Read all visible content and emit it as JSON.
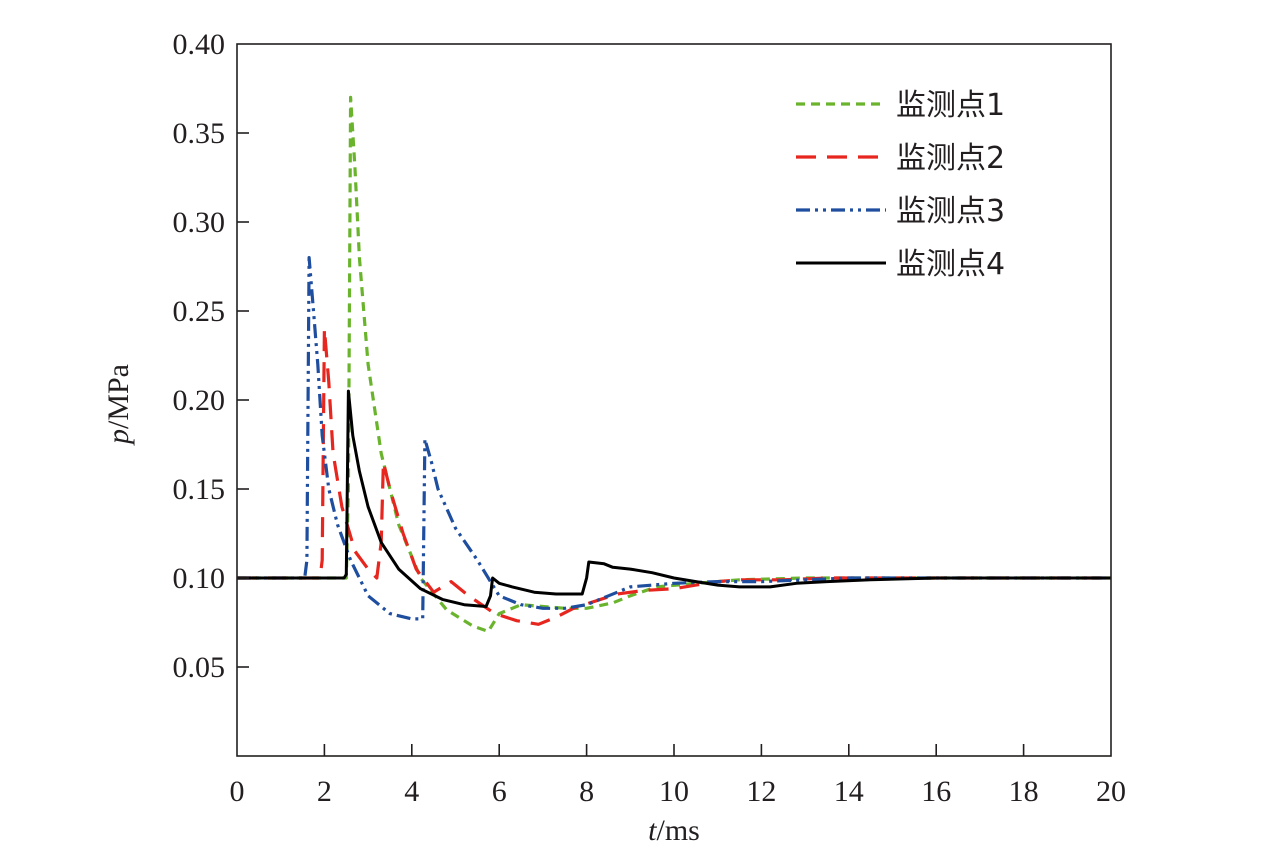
{
  "chart_data": {
    "type": "line",
    "title": "",
    "xlabel": {
      "var": "t",
      "unit": "/ms"
    },
    "ylabel": {
      "var": "p",
      "unit": "/MPa"
    },
    "xlim": [
      0,
      20
    ],
    "ylim": [
      0,
      0.4
    ],
    "x_ticks": [
      0,
      2,
      4,
      6,
      8,
      10,
      12,
      14,
      16,
      18,
      20
    ],
    "x_tick_labels": [
      "0",
      "2",
      "4",
      "6",
      "8",
      "10",
      "12",
      "14",
      "16",
      "18",
      "20"
    ],
    "y_ticks": [
      0.05,
      0.1,
      0.15,
      0.2,
      0.25,
      0.3,
      0.35,
      0.4
    ],
    "y_tick_labels": [
      "0.05",
      "0.10",
      "0.15",
      "0.20",
      "0.25",
      "0.30",
      "0.35",
      "0.40"
    ],
    "grid": false,
    "legend_position": "top-right",
    "series": [
      {
        "name": "监测点1",
        "color": "#6ab42d",
        "style": "short-dash",
        "points": [
          [
            0,
            0.1
          ],
          [
            2.5,
            0.1
          ],
          [
            2.55,
            0.15
          ],
          [
            2.6,
            0.37
          ],
          [
            2.7,
            0.33
          ],
          [
            2.8,
            0.28
          ],
          [
            3.0,
            0.22
          ],
          [
            3.3,
            0.17
          ],
          [
            3.7,
            0.13
          ],
          [
            4.2,
            0.1
          ],
          [
            4.8,
            0.082
          ],
          [
            5.4,
            0.073
          ],
          [
            5.75,
            0.07
          ],
          [
            6.0,
            0.08
          ],
          [
            6.5,
            0.085
          ],
          [
            7.0,
            0.084
          ],
          [
            7.5,
            0.083
          ],
          [
            8.0,
            0.083
          ],
          [
            8.6,
            0.086
          ],
          [
            9.0,
            0.09
          ],
          [
            9.6,
            0.095
          ],
          [
            10.5,
            0.097
          ],
          [
            11.5,
            0.099
          ],
          [
            13,
            0.1
          ],
          [
            15,
            0.1
          ],
          [
            17,
            0.1
          ],
          [
            20,
            0.1
          ]
        ]
      },
      {
        "name": "监测点2",
        "color": "#e6261f",
        "style": "long-dash",
        "points": [
          [
            0,
            0.1
          ],
          [
            1.9,
            0.1
          ],
          [
            1.95,
            0.11
          ],
          [
            2.0,
            0.24
          ],
          [
            2.1,
            0.21
          ],
          [
            2.2,
            0.17
          ],
          [
            2.4,
            0.14
          ],
          [
            2.7,
            0.115
          ],
          [
            3.0,
            0.105
          ],
          [
            3.2,
            0.1
          ],
          [
            3.3,
            0.12
          ],
          [
            3.35,
            0.165
          ],
          [
            3.5,
            0.15
          ],
          [
            3.8,
            0.125
          ],
          [
            4.1,
            0.105
          ],
          [
            4.5,
            0.092
          ],
          [
            4.9,
            0.098
          ],
          [
            5.3,
            0.09
          ],
          [
            5.9,
            0.08
          ],
          [
            6.4,
            0.076
          ],
          [
            6.9,
            0.074
          ],
          [
            7.3,
            0.078
          ],
          [
            7.7,
            0.083
          ],
          [
            8.2,
            0.087
          ],
          [
            8.7,
            0.091
          ],
          [
            9.3,
            0.093
          ],
          [
            10,
            0.094
          ],
          [
            10.5,
            0.096
          ],
          [
            11,
            0.098
          ],
          [
            11.5,
            0.099
          ],
          [
            12.5,
            0.099
          ],
          [
            13.5,
            0.1
          ],
          [
            16,
            0.1
          ],
          [
            18,
            0.1
          ],
          [
            20,
            0.1
          ]
        ]
      },
      {
        "name": "监测点3",
        "color": "#1f4e9f",
        "style": "dash-dot-dot",
        "points": [
          [
            0,
            0.1
          ],
          [
            1.55,
            0.1
          ],
          [
            1.6,
            0.11
          ],
          [
            1.65,
            0.28
          ],
          [
            1.75,
            0.25
          ],
          [
            1.85,
            0.22
          ],
          [
            1.95,
            0.18
          ],
          [
            2.1,
            0.15
          ],
          [
            2.3,
            0.13
          ],
          [
            2.6,
            0.11
          ],
          [
            3.0,
            0.09
          ],
          [
            3.5,
            0.08
          ],
          [
            4.0,
            0.077
          ],
          [
            4.25,
            0.077
          ],
          [
            4.3,
            0.178
          ],
          [
            4.45,
            0.165
          ],
          [
            4.6,
            0.15
          ],
          [
            5.0,
            0.128
          ],
          [
            5.5,
            0.11
          ],
          [
            6.0,
            0.09
          ],
          [
            6.5,
            0.085
          ],
          [
            7.0,
            0.083
          ],
          [
            7.5,
            0.083
          ],
          [
            8.0,
            0.085
          ],
          [
            8.5,
            0.09
          ],
          [
            9.0,
            0.095
          ],
          [
            9.5,
            0.096
          ],
          [
            10,
            0.097
          ],
          [
            11,
            0.098
          ],
          [
            12,
            0.098
          ],
          [
            13,
            0.099
          ],
          [
            14,
            0.1
          ],
          [
            16,
            0.1
          ],
          [
            18,
            0.1
          ],
          [
            20,
            0.1
          ]
        ]
      },
      {
        "name": "监测点4",
        "color": "#000000",
        "style": "solid",
        "points": [
          [
            0,
            0.1
          ],
          [
            2.45,
            0.1
          ],
          [
            2.5,
            0.102
          ],
          [
            2.55,
            0.205
          ],
          [
            2.65,
            0.18
          ],
          [
            2.8,
            0.16
          ],
          [
            3.0,
            0.14
          ],
          [
            3.3,
            0.12
          ],
          [
            3.7,
            0.105
          ],
          [
            4.2,
            0.094
          ],
          [
            4.7,
            0.088
          ],
          [
            5.2,
            0.085
          ],
          [
            5.7,
            0.084
          ],
          [
            5.8,
            0.09
          ],
          [
            5.85,
            0.1
          ],
          [
            6.0,
            0.097
          ],
          [
            6.3,
            0.095
          ],
          [
            6.8,
            0.092
          ],
          [
            7.3,
            0.091
          ],
          [
            7.9,
            0.091
          ],
          [
            8.0,
            0.1
          ],
          [
            8.05,
            0.109
          ],
          [
            8.4,
            0.108
          ],
          [
            8.6,
            0.106
          ],
          [
            9.0,
            0.105
          ],
          [
            9.5,
            0.103
          ],
          [
            10,
            0.1
          ],
          [
            10.5,
            0.098
          ],
          [
            11,
            0.096
          ],
          [
            11.5,
            0.095
          ],
          [
            12.2,
            0.095
          ],
          [
            12.8,
            0.097
          ],
          [
            13.5,
            0.098
          ],
          [
            14.5,
            0.099
          ],
          [
            16,
            0.1
          ],
          [
            18,
            0.1
          ],
          [
            20,
            0.1
          ]
        ]
      }
    ]
  }
}
